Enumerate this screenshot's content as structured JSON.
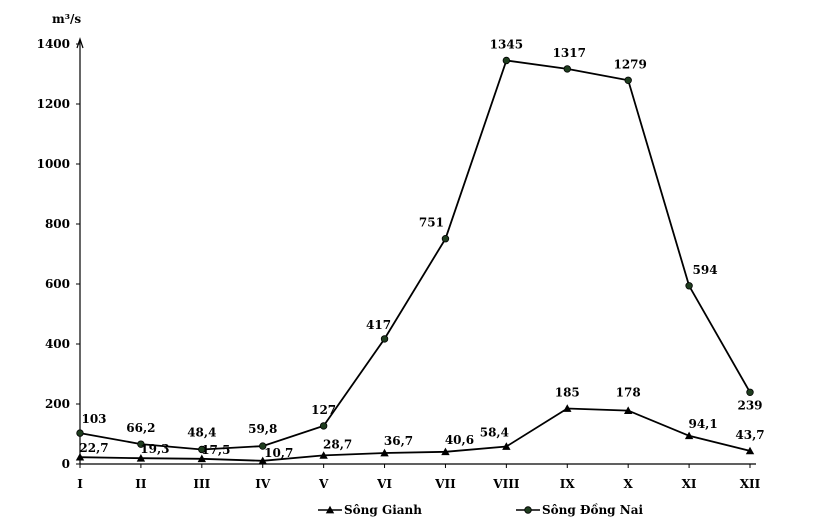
{
  "chart_data": {
    "type": "line",
    "ylabel": "m³/s",
    "ylim": [
      0,
      1400
    ],
    "yticks": [
      "0",
      "200",
      "400",
      "600",
      "800",
      "1000",
      "1200",
      "1400"
    ],
    "categories": [
      "I",
      "II",
      "III",
      "IV",
      "V",
      "VI",
      "VII",
      "VIII",
      "IX",
      "X",
      "XI",
      "XII"
    ],
    "grid": false,
    "legend_position": "bottom",
    "series": [
      {
        "name": "Sông Gianh",
        "marker": "triangle",
        "values": [
          22.7,
          19.3,
          17.5,
          10.7,
          28.7,
          36.7,
          40.6,
          58.4,
          185,
          178,
          94.1,
          43.7
        ],
        "labels": [
          "22,7",
          "19,3",
          "17,5",
          "10,7",
          "28,7",
          "36,7",
          "40,6",
          "58,4",
          "185",
          "178",
          "94,1",
          "43,7"
        ]
      },
      {
        "name": "Sông Đồng Nai",
        "marker": "circle",
        "values": [
          103,
          66.2,
          48.4,
          59.8,
          127,
          417,
          751,
          1345,
          1317,
          1279,
          594,
          239
        ],
        "labels": [
          "103",
          "66,2",
          "48,4",
          "59,8",
          "127",
          "417",
          "751",
          "1345",
          "1317",
          "1279",
          "594",
          "239"
        ]
      }
    ],
    "colors": {
      "line": "#000000",
      "circle_fill": "#1f3d1f"
    }
  }
}
